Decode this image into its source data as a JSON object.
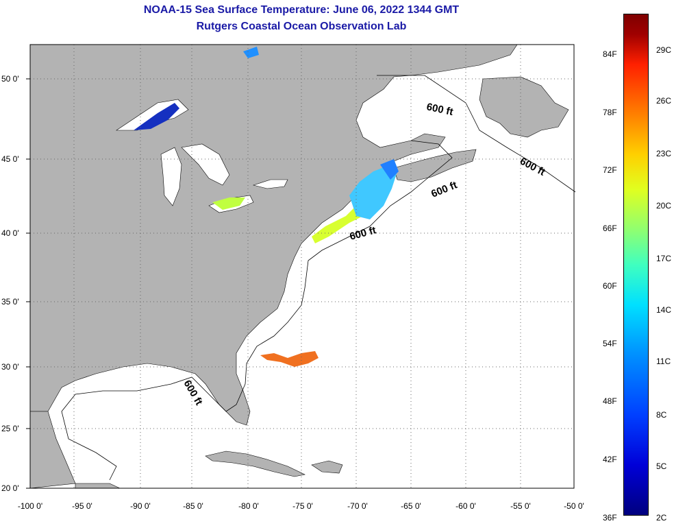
{
  "title": "NOAA-15 Sea Surface Temperature:  June 06, 2022 1344 GMT",
  "subtitle": "Rutgers Coastal Ocean Observation Lab",
  "lat_labels": [
    "50 0'",
    "45 0'",
    "40 0'",
    "35 0'",
    "30 0'",
    "25 0'",
    "20 0'"
  ],
  "lon_labels": [
    "-100 0'",
    "-95 0'",
    "-90 0'",
    "-85 0'",
    "-80 0'",
    "-75 0'",
    "-70 0'",
    "-65 0'",
    "-60 0'",
    "-55 0'",
    "-50 0'"
  ],
  "depth_contour_label": "600 ft",
  "colorbar": {
    "fahrenheit": [
      "84F",
      "78F",
      "72F",
      "66F",
      "60F",
      "54F",
      "48F",
      "42F",
      "36F"
    ],
    "celsius": [
      "29C",
      "26C",
      "23C",
      "20C",
      "17C",
      "14C",
      "11C",
      "8C",
      "5C",
      "2C"
    ]
  },
  "colors": {
    "land": "#b3b3b3",
    "ocean": "#ffffff",
    "title": "#1a1aa6"
  }
}
